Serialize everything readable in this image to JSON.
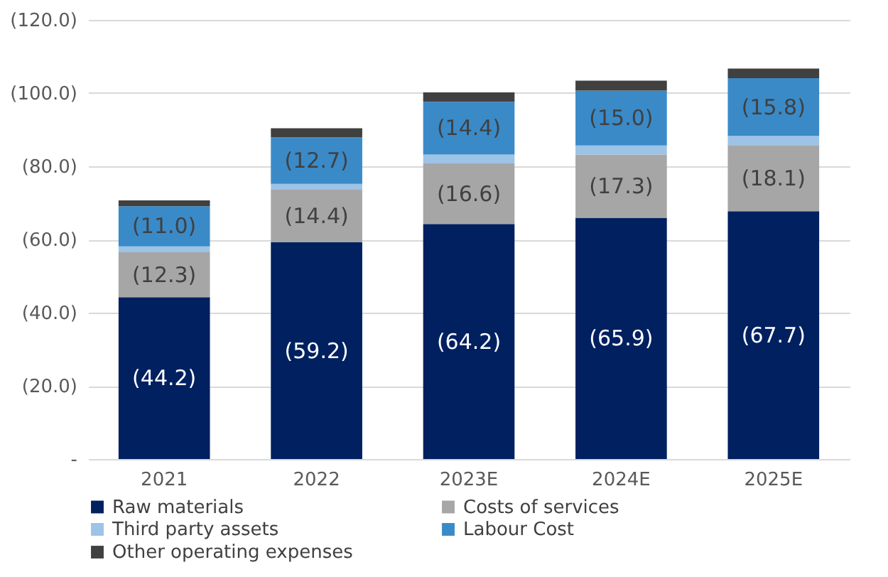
{
  "chart_data": {
    "type": "bar",
    "stacked": true,
    "categories": [
      "2021",
      "2022",
      "2023E",
      "2024E",
      "2025E"
    ],
    "series": [
      {
        "name": "Raw materials",
        "color": "#002060",
        "values": [
          44.2,
          59.2,
          64.2,
          65.9,
          67.7
        ],
        "value_labels": [
          "(44.2)",
          "(59.2)",
          "(64.2)",
          "(65.9)",
          "(67.7)"
        ]
      },
      {
        "name": "Costs of services",
        "color": "#a6a6a6",
        "values": [
          12.3,
          14.4,
          16.6,
          17.3,
          18.1
        ],
        "value_labels": [
          "(12.3)",
          "(14.4)",
          "(16.6)",
          "(17.3)",
          "(18.1)"
        ]
      },
      {
        "name": "Third party assets",
        "color": "#9dc3e6",
        "values": [
          1.6,
          1.6,
          2.4,
          2.5,
          2.5
        ]
      },
      {
        "name": "Labour Cost",
        "color": "#3a8ac8",
        "values": [
          11.0,
          12.7,
          14.4,
          15.0,
          15.8
        ],
        "value_labels": [
          "(11.0)",
          "(12.7)",
          "(14.4)",
          "(15.0)",
          "(15.8)"
        ]
      },
      {
        "name": "Other operating expenses",
        "color": "#404040",
        "values": [
          1.6,
          2.5,
          2.6,
          2.7,
          2.6
        ]
      }
    ],
    "ylim": [
      0,
      120
    ],
    "yticks": [
      {
        "value": 0,
        "label": "-"
      },
      {
        "value": 20,
        "label": "(20.0)"
      },
      {
        "value": 40,
        "label": "(40.0)"
      },
      {
        "value": 60,
        "label": "(60.0)"
      },
      {
        "value": 80,
        "label": "(80.0)"
      },
      {
        "value": 100,
        "label": "(100.0)"
      },
      {
        "value": 120,
        "label": "(120.0)"
      }
    ],
    "grid": "y",
    "legend": "bottom"
  }
}
